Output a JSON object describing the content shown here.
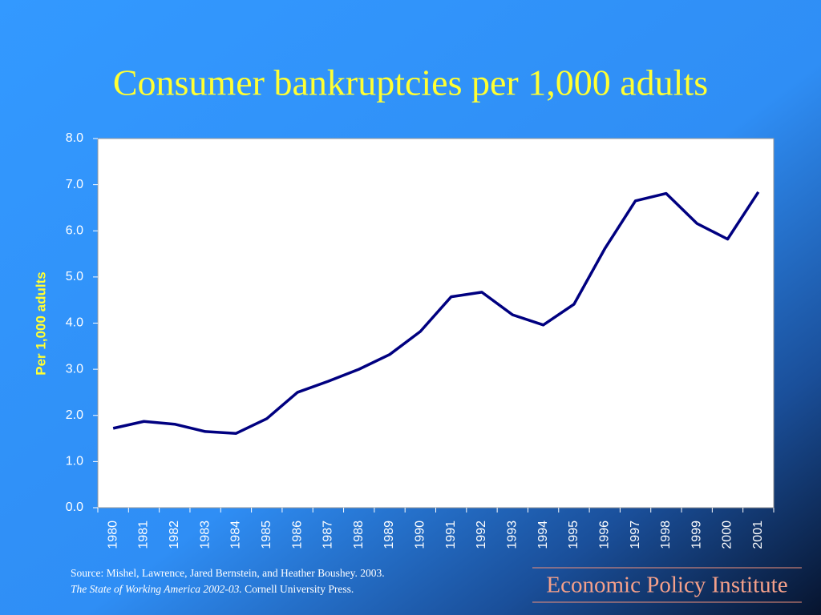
{
  "chart_data": {
    "type": "line",
    "title": "Consumer bankruptcies per 1,000 adults",
    "y_label": "Per 1,000 adults",
    "categories": [
      "1980",
      "1981",
      "1982",
      "1983",
      "1984",
      "1985",
      "1986",
      "1987",
      "1988",
      "1989",
      "1990",
      "1991",
      "1992",
      "1993",
      "1994",
      "1995",
      "1996",
      "1997",
      "1998",
      "1999",
      "2000",
      "2001"
    ],
    "series": [
      {
        "name": "Consumer bankruptcies per 1,000 adults",
        "color": "#000080",
        "values": [
          1.72,
          1.87,
          1.81,
          1.65,
          1.61,
          1.93,
          2.5,
          2.74,
          3.0,
          3.32,
          3.82,
          4.57,
          4.67,
          4.18,
          3.96,
          4.41,
          5.61,
          6.65,
          6.81,
          6.16,
          5.82,
          6.84
        ]
      }
    ],
    "ylim": [
      0,
      8
    ],
    "yticks": [
      {
        "value": 0,
        "label": "0.0"
      },
      {
        "value": 1,
        "label": "1.0"
      },
      {
        "value": 2,
        "label": "2.0"
      },
      {
        "value": 3,
        "label": "3.0"
      },
      {
        "value": 4,
        "label": "4.0"
      },
      {
        "value": 5,
        "label": "5.0"
      },
      {
        "value": 6,
        "label": "6.0"
      },
      {
        "value": 7,
        "label": "7.0"
      },
      {
        "value": 8,
        "label": "8.0"
      }
    ],
    "grid": false
  },
  "footer": {
    "source_line1": "Source:  Mishel, Lawrence, Jared Bernstein, and Heather Boushey. 2003.",
    "source_italic": "The State of Working America 2002-03.",
    "source_rest": " Cornell University Press.",
    "logo": "Economic Policy Institute"
  }
}
